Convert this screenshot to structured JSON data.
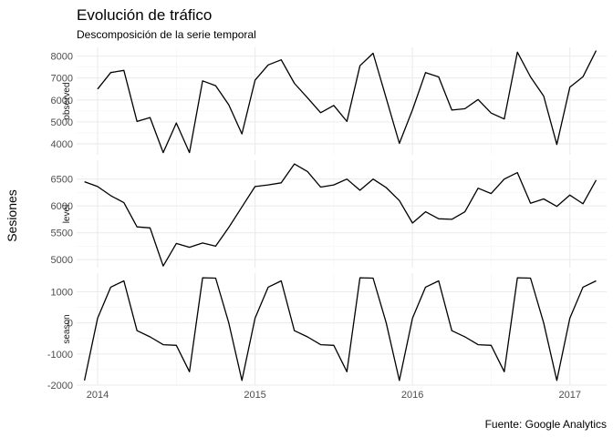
{
  "chart_data": {
    "type": "line",
    "title": "Evolución de tráfico",
    "subtitle": "Descomposición de la serie temporal",
    "caption": "Fuente: Google Analytics",
    "ylabel": "Sesiones",
    "xlabel": "",
    "grid": true,
    "x": [
      "2013-12",
      "2014-01",
      "2014-02",
      "2014-03",
      "2014-04",
      "2014-05",
      "2014-06",
      "2014-07",
      "2014-08",
      "2014-09",
      "2014-10",
      "2014-11",
      "2014-12",
      "2015-01",
      "2015-02",
      "2015-03",
      "2015-04",
      "2015-05",
      "2015-06",
      "2015-07",
      "2015-08",
      "2015-09",
      "2015-10",
      "2015-11",
      "2015-12",
      "2016-01",
      "2016-02",
      "2016-03",
      "2016-04",
      "2016-05",
      "2016-06",
      "2016-07",
      "2016-08",
      "2016-09",
      "2016-10",
      "2016-11",
      "2016-12",
      "2017-01",
      "2017-02",
      "2017-03"
    ],
    "x_ticks": [
      {
        "label": "2014",
        "at": "2014-01"
      },
      {
        "label": "2015",
        "at": "2015-01"
      },
      {
        "label": "2016",
        "at": "2016-01"
      },
      {
        "label": "2017",
        "at": "2017-01"
      }
    ],
    "panels": [
      {
        "name": "observed",
        "ylim": [
          3500,
          8400
        ],
        "y_ticks": [
          4000,
          5000,
          6000,
          7000,
          8000
        ],
        "values": [
          null,
          6500,
          7250,
          7350,
          5020,
          5200,
          3600,
          4950,
          3600,
          6870,
          6650,
          5780,
          4450,
          6900,
          7600,
          7830,
          6760,
          6100,
          5420,
          5750,
          5020,
          7560,
          8130,
          6080,
          4020,
          5550,
          7250,
          7050,
          5540,
          5600,
          6020,
          5400,
          5130,
          8180,
          7050,
          6180,
          3970,
          6580,
          7060,
          8250
        ]
      },
      {
        "name": "level",
        "ylim": [
          4850,
          6850
        ],
        "y_ticks": [
          5000,
          5500,
          6000,
          6500
        ],
        "values": [
          6450,
          6360,
          6190,
          6060,
          5610,
          5590,
          4880,
          5300,
          5230,
          5310,
          5250,
          5600,
          5980,
          6360,
          6390,
          6430,
          6780,
          6640,
          6350,
          6390,
          6500,
          6290,
          6500,
          6340,
          6100,
          5680,
          5890,
          5760,
          5750,
          5890,
          6330,
          6230,
          6500,
          6620,
          6050,
          6130,
          5990,
          6200,
          6040,
          6480
        ]
      },
      {
        "name": "season",
        "ylim": [
          -2000,
          1600
        ],
        "y_ticks": [
          -2000,
          -1000,
          0,
          1000
        ],
        "values": [
          -1850,
          150,
          1150,
          1350,
          -250,
          -450,
          -700,
          -720,
          -1570,
          1450,
          1440,
          0,
          -1850,
          150,
          1150,
          1350,
          -250,
          -450,
          -700,
          -720,
          -1570,
          1450,
          1440,
          0,
          -1850,
          150,
          1150,
          1350,
          -250,
          -450,
          -700,
          -720,
          -1570,
          1450,
          1440,
          0,
          -1850,
          150,
          1150,
          1350
        ]
      }
    ]
  }
}
